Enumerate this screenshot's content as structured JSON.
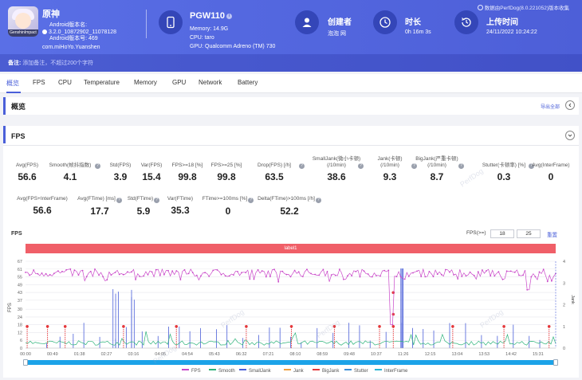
{
  "app": {
    "name": "原神",
    "icon_caption": "GenshinImpact",
    "version": "3.2.0_10872902_11078128",
    "version_prefix": "Android版本名:",
    "version_code_label": "Android版本号: 469",
    "package": "com.miHoYo.Yuanshen"
  },
  "device": {
    "name": "PGW110",
    "memory": "Memory: 14.9G",
    "cpu": "CPU: taro",
    "gpu": "GPU: Qualcomm Adreno (TM) 730"
  },
  "creator": {
    "label": "创建者",
    "value": "泡泡 网"
  },
  "duration": {
    "label": "时长",
    "value": "0h 16m 3s"
  },
  "upload": {
    "label": "上传时间",
    "value": "24/11/2022 10:24:22"
  },
  "powered_by": "数据由PerfDog(8.0.221052)版本收集",
  "note": {
    "label": "备注:",
    "placeholder": "添加备注，不超过200个字符"
  },
  "tabs": [
    "概览",
    "FPS",
    "CPU",
    "Temperature",
    "Memory",
    "GPU",
    "Network",
    "Battery"
  ],
  "overview": {
    "title": "概览",
    "export": "导出全部"
  },
  "fps_section": {
    "title": "FPS",
    "stats_row1": [
      {
        "label": "Avg(FPS)",
        "value": "56.6"
      },
      {
        "label": "Smooth(帧抖指数)",
        "value": "4.1",
        "help": true
      },
      {
        "label": "Std(FPS)",
        "value": "3.9"
      },
      {
        "label": "Var(FPS)",
        "value": "15.4"
      },
      {
        "label": "FPS>=18 [%]",
        "value": "99.8"
      },
      {
        "label": "FPS>=25 [%]",
        "value": "99.8"
      },
      {
        "label": "Drop(FPS) [/h]",
        "value": "63.5",
        "help": true
      },
      {
        "label": "SmallJank(微小卡顿)",
        "label2": "(/10min)",
        "value": "38.6",
        "help": true
      },
      {
        "label": "Jank(卡顿)",
        "label2": "(/10min)",
        "value": "9.3",
        "help": true
      },
      {
        "label": "BigJank(严重卡顿)",
        "label2": "(/10min)",
        "value": "8.7",
        "help": true
      },
      {
        "label": "Stutter(卡顿率) [%]",
        "value": "0.3",
        "help": true
      },
      {
        "label": "Avg(InterFrame)",
        "value": "0"
      }
    ],
    "stats_row2": [
      {
        "label": "Avg(FPS+InterFrame)",
        "value": "56.6"
      },
      {
        "label": "Avg(FTime) [ms]",
        "value": "17.7",
        "help": true
      },
      {
        "label": "Std(FTime)",
        "value": "5.9",
        "help": true
      },
      {
        "label": "Var(FTime)",
        "value": "35.3"
      },
      {
        "label": "FTime>=100ms [%]",
        "value": "0",
        "help": true
      },
      {
        "label": "Delta(FTime)>100ms [/h]",
        "value": "52.2",
        "help": true
      }
    ],
    "chart_title": "FPS",
    "threshold_label": "FPS(>=)",
    "threshold_1": "18",
    "threshold_2": "25",
    "reset": "重置",
    "label_bar": "label1",
    "watermark": "PerfDog"
  },
  "chart_data": {
    "type": "line",
    "title": "FPS",
    "ylabel": "FPS",
    "y2label": "Jank",
    "ylim": [
      0,
      67
    ],
    "y2lim": [
      0,
      4
    ],
    "y_ticks": [
      "0",
      "6",
      "12",
      "18",
      "24",
      "30",
      "37",
      "43",
      "49",
      "55",
      "61",
      "67"
    ],
    "y2_ticks": [
      "0",
      "1",
      "2",
      "3",
      "4"
    ],
    "x_ticks": [
      "00:00",
      "00:49",
      "01:38",
      "02:27",
      "03:16",
      "04:05",
      "04:54",
      "05:43",
      "06:32",
      "07:21",
      "08:10",
      "08:59",
      "09:48",
      "10:37",
      "11:26",
      "12:15",
      "13:04",
      "13:53",
      "14:42",
      "15:31"
    ],
    "fps_typical": 58,
    "fps_range": [
      51,
      62
    ],
    "fps_dips": [
      {
        "x": "11:05",
        "value": 18
      },
      {
        "x": "15:13",
        "value": 45
      }
    ],
    "smooth_typical": 4,
    "jank_points_x": [
      "00:03",
      "00:40",
      "01:12",
      "02:58",
      "04:34",
      "06:41",
      "08:03",
      "09:21",
      "10:43",
      "11:08",
      "12:56",
      "14:29",
      "15:51"
    ],
    "legend": [
      {
        "name": "FPS",
        "color": "#c948c9"
      },
      {
        "name": "Smooth",
        "color": "#2db37a"
      },
      {
        "name": "SmallJank",
        "color": "#4a5fd9"
      },
      {
        "name": "Jank",
        "color": "#f0a040"
      },
      {
        "name": "BigJank",
        "color": "#e5383b"
      },
      {
        "name": "Stutter",
        "color": "#3b8fd9"
      },
      {
        "name": "InterFrame",
        "color": "#29b6d6"
      }
    ]
  }
}
